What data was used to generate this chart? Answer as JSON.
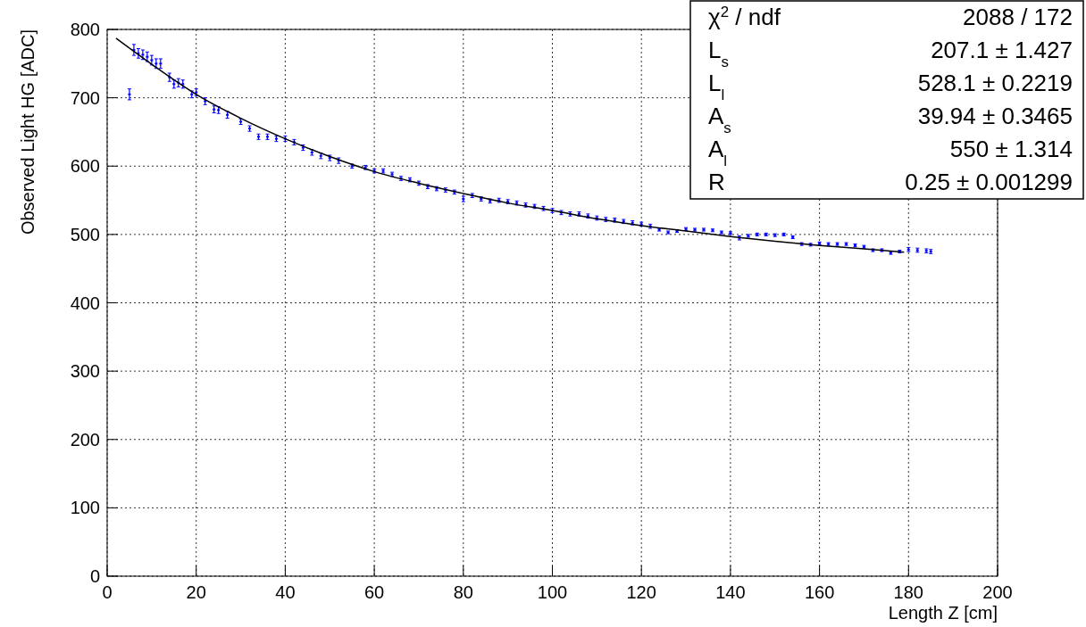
{
  "chart_data": {
    "type": "scatter",
    "xlabel": "Length Z [cm]",
    "ylabel": "Observed Light HG [ADC]",
    "xlim": [
      0,
      200
    ],
    "xticks": [
      0,
      20,
      40,
      60,
      80,
      100,
      120,
      140,
      160,
      180,
      200
    ],
    "ylim": [
      0,
      800
    ],
    "yticks": [
      0,
      100,
      200,
      300,
      400,
      500,
      600,
      700,
      800
    ],
    "grid": true,
    "annotations": [
      "χ$^{2}$ / ndf",
      "2088 / 172",
      "L$_{s}$",
      "207.1 ± 1.427",
      "L$_{l}$",
      "528.1 ± 0.2219",
      "A$_{s}$",
      "39.94 ± 0.3465",
      "A$_{l}$",
      "550 ± 1.314",
      "R",
      "0.25 ± 0.001299"
    ],
    "series": [
      {
        "color": "#0000ff",
        "x": [
          5,
          6,
          7,
          8,
          9,
          10,
          11,
          12,
          14,
          15,
          16,
          17,
          19,
          20,
          22,
          24,
          25,
          27,
          30,
          32,
          34,
          36,
          38,
          40,
          42,
          44,
          46,
          48,
          50,
          52,
          55,
          58,
          60,
          62,
          64,
          66,
          68,
          70,
          72,
          74,
          76,
          78,
          80,
          82,
          84,
          86,
          88,
          90,
          92,
          94,
          96,
          98,
          100,
          102,
          104,
          106,
          108,
          110,
          112,
          114,
          116,
          118,
          120,
          122,
          124,
          126,
          128,
          130,
          132,
          134,
          136,
          138,
          140,
          142,
          144,
          146,
          148,
          150,
          152,
          154,
          156,
          158,
          160,
          162,
          164,
          166,
          168,
          170,
          172,
          174,
          176,
          178,
          180,
          182,
          184,
          185
        ],
        "values": [
          705,
          770,
          765,
          763,
          760,
          755,
          750,
          750,
          730,
          720,
          722,
          720,
          705,
          708,
          695,
          683,
          682,
          675,
          665,
          655,
          643,
          643,
          640,
          640,
          635,
          627,
          620,
          615,
          612,
          608,
          600,
          598,
          593,
          593,
          588,
          582,
          580,
          575,
          570,
          567,
          565,
          562,
          552,
          557,
          552,
          549,
          550,
          548,
          546,
          543,
          541,
          538,
          535,
          532,
          530,
          530,
          527,
          524,
          522,
          521,
          519,
          517,
          515,
          512,
          507,
          503,
          505,
          508,
          507,
          507,
          506,
          503,
          502,
          495,
          498,
          500,
          500,
          499,
          500,
          496,
          486,
          485,
          487,
          486,
          486,
          486,
          484,
          482,
          477,
          477,
          473,
          475,
          478,
          477,
          476,
          475
        ],
        "errors": [
          8,
          8,
          7,
          7,
          7,
          7,
          7,
          7,
          6,
          6,
          6,
          6,
          5,
          5,
          5,
          5,
          5,
          5,
          4,
          4,
          4,
          4,
          4,
          4,
          4,
          4,
          4,
          4,
          4,
          4,
          3,
          3,
          3,
          3,
          3,
          3,
          3,
          3,
          3,
          3,
          3,
          3,
          4,
          3,
          3,
          3,
          3,
          3,
          3,
          3,
          3,
          3,
          3,
          3,
          3,
          3,
          3,
          3,
          3,
          3,
          3,
          3,
          3,
          3,
          2,
          2,
          2,
          2,
          2,
          2,
          2,
          2,
          2,
          3,
          2,
          2,
          2,
          2,
          2,
          2,
          2,
          2,
          2,
          2,
          2,
          2,
          2,
          2,
          2,
          2,
          2,
          2,
          3,
          3,
          3,
          3
        ]
      },
      {
        "type": "line",
        "color": "#000000",
        "x": [
          2,
          10,
          20,
          30,
          40,
          50,
          60,
          70,
          80,
          90,
          100,
          110,
          120,
          130,
          140,
          150,
          160,
          170,
          179
        ],
        "values": [
          787,
          749,
          705,
          670,
          640,
          614,
          592,
          575,
          560,
          546,
          535,
          523,
          513,
          505,
          497,
          490,
          484,
          479,
          474
        ]
      }
    ]
  }
}
